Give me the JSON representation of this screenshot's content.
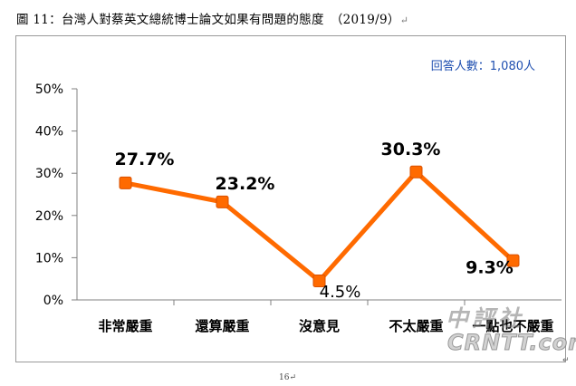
{
  "document": {
    "title": "圖 11：台灣人對蔡英文總統博士論文如果有問題的態度　（2019/9）",
    "return_mark": "↵",
    "page_number": "16↵",
    "corner_mark": "↵"
  },
  "watermark": {
    "chinese": "中評社",
    "latin": "CRNTT.com"
  },
  "chart_data": {
    "type": "line",
    "title": "",
    "xlabel": "",
    "ylabel": "",
    "sample_note": "回答人數：1,080人",
    "categories": [
      "非常嚴重",
      "還算嚴重",
      "沒意見",
      "不太嚴重",
      "一點也不嚴重"
    ],
    "series": [
      {
        "values": [
          27.7,
          23.2,
          4.5,
          30.3,
          9.3
        ],
        "color": "#ff6a00"
      }
    ],
    "data_labels": [
      "27.7%",
      "23.2%",
      "4.5%",
      "30.3%",
      "9.3%"
    ],
    "ylim": [
      0,
      50
    ],
    "yticks": [
      0,
      10,
      20,
      30,
      40,
      50
    ],
    "ytick_labels": [
      "0%",
      "10%",
      "20%",
      "30%",
      "40%",
      "50%"
    ],
    "grid": false,
    "legend": "none",
    "colors": {
      "line": "#ff6a00",
      "marker": "#ff6a00",
      "note": "#1f4fb0",
      "axis": "#808080"
    }
  }
}
